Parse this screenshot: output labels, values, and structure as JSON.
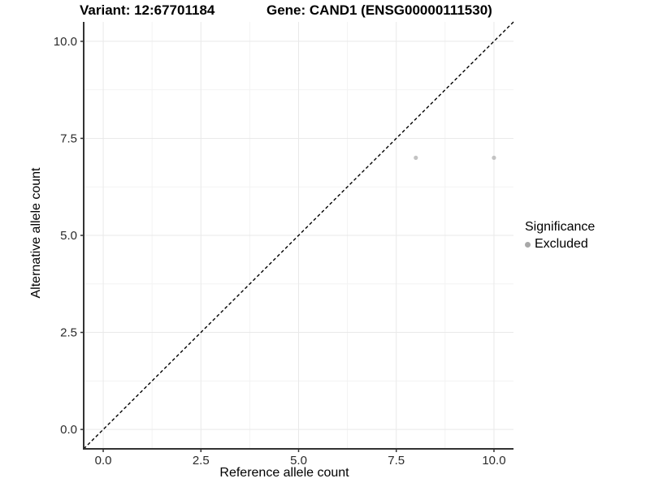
{
  "header": {
    "variant_title": "Variant: 12:67701184",
    "gene_title": "Gene: CAND1 (ENSG00000111530)"
  },
  "chart_data": {
    "type": "scatter",
    "xlabel": "Reference allele count",
    "ylabel": "Alternative allele count",
    "xlim": [
      -0.5,
      10.5
    ],
    "ylim": [
      -0.5,
      10.5
    ],
    "x_ticks": [
      0,
      2.5,
      5,
      7.5,
      10
    ],
    "x_tick_labels": [
      "0.0",
      "2.5",
      "5.0",
      "7.5",
      "10.0"
    ],
    "y_ticks": [
      0,
      2.5,
      5,
      7.5,
      10
    ],
    "y_tick_labels": [
      "0.0",
      "2.5",
      "5.0",
      "7.5",
      "10.0"
    ],
    "minor_ticks": [
      1.25,
      3.75,
      6.25,
      8.75
    ],
    "grid": true,
    "reference_line": {
      "slope": 1,
      "intercept": 0,
      "style": "dashed",
      "color": "#000000"
    },
    "series": [
      {
        "name": "Excluded",
        "color": "#c3c3c3",
        "points": [
          {
            "x": 8,
            "y": 7
          },
          {
            "x": 10,
            "y": 7
          }
        ]
      }
    ],
    "legend": {
      "title": "Significance",
      "position": "right",
      "items": [
        {
          "label": "Excluded",
          "color": "#a8a8a8"
        }
      ]
    }
  },
  "colors": {
    "axis": "#333333",
    "grid_major": "#e9e9e9",
    "grid_minor": "#f3f3f3",
    "tick_label": "#2b2b2b"
  }
}
